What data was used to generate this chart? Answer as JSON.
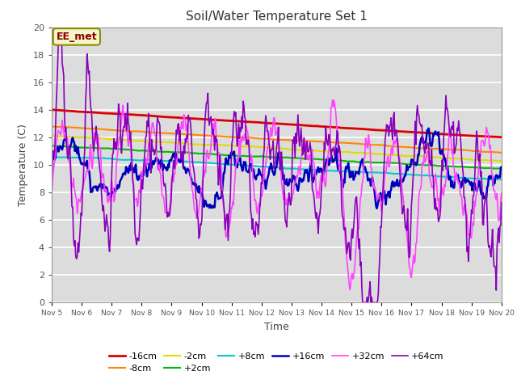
{
  "title": "Soil/Water Temperature Set 1",
  "xlabel": "Time",
  "ylabel": "Temperature (C)",
  "ylim": [
    0,
    20
  ],
  "xlim": [
    0,
    15
  ],
  "background_color": "#dcdcdc",
  "annotation_text": "EE_met",
  "annotation_bg": "#f5f5c8",
  "annotation_border": "#8B8B00",
  "x_tick_labels": [
    "Nov 5",
    "Nov 6",
    "Nov 7",
    "Nov 8",
    "Nov 9",
    "Nov 10",
    "Nov 11",
    "Nov 12",
    "Nov 13",
    "Nov 14",
    "Nov 15",
    "Nov 16",
    "Nov 17",
    "Nov 18",
    "Nov 19",
    "Nov 20"
  ],
  "series": [
    {
      "label": "-16cm",
      "color": "#dd0000",
      "lw": 2.0
    },
    {
      "label": "-8cm",
      "color": "#ff8800",
      "lw": 1.5
    },
    {
      "label": "-2cm",
      "color": "#dddd00",
      "lw": 1.5
    },
    {
      "label": "+2cm",
      "color": "#00bb00",
      "lw": 1.5
    },
    {
      "label": "+8cm",
      "color": "#00cccc",
      "lw": 1.5
    },
    {
      "label": "+16cm",
      "color": "#0000bb",
      "lw": 1.8
    },
    {
      "label": "+32cm",
      "color": "#ff44ff",
      "lw": 1.2
    },
    {
      "label": "+64cm",
      "color": "#8800bb",
      "lw": 1.2
    }
  ]
}
